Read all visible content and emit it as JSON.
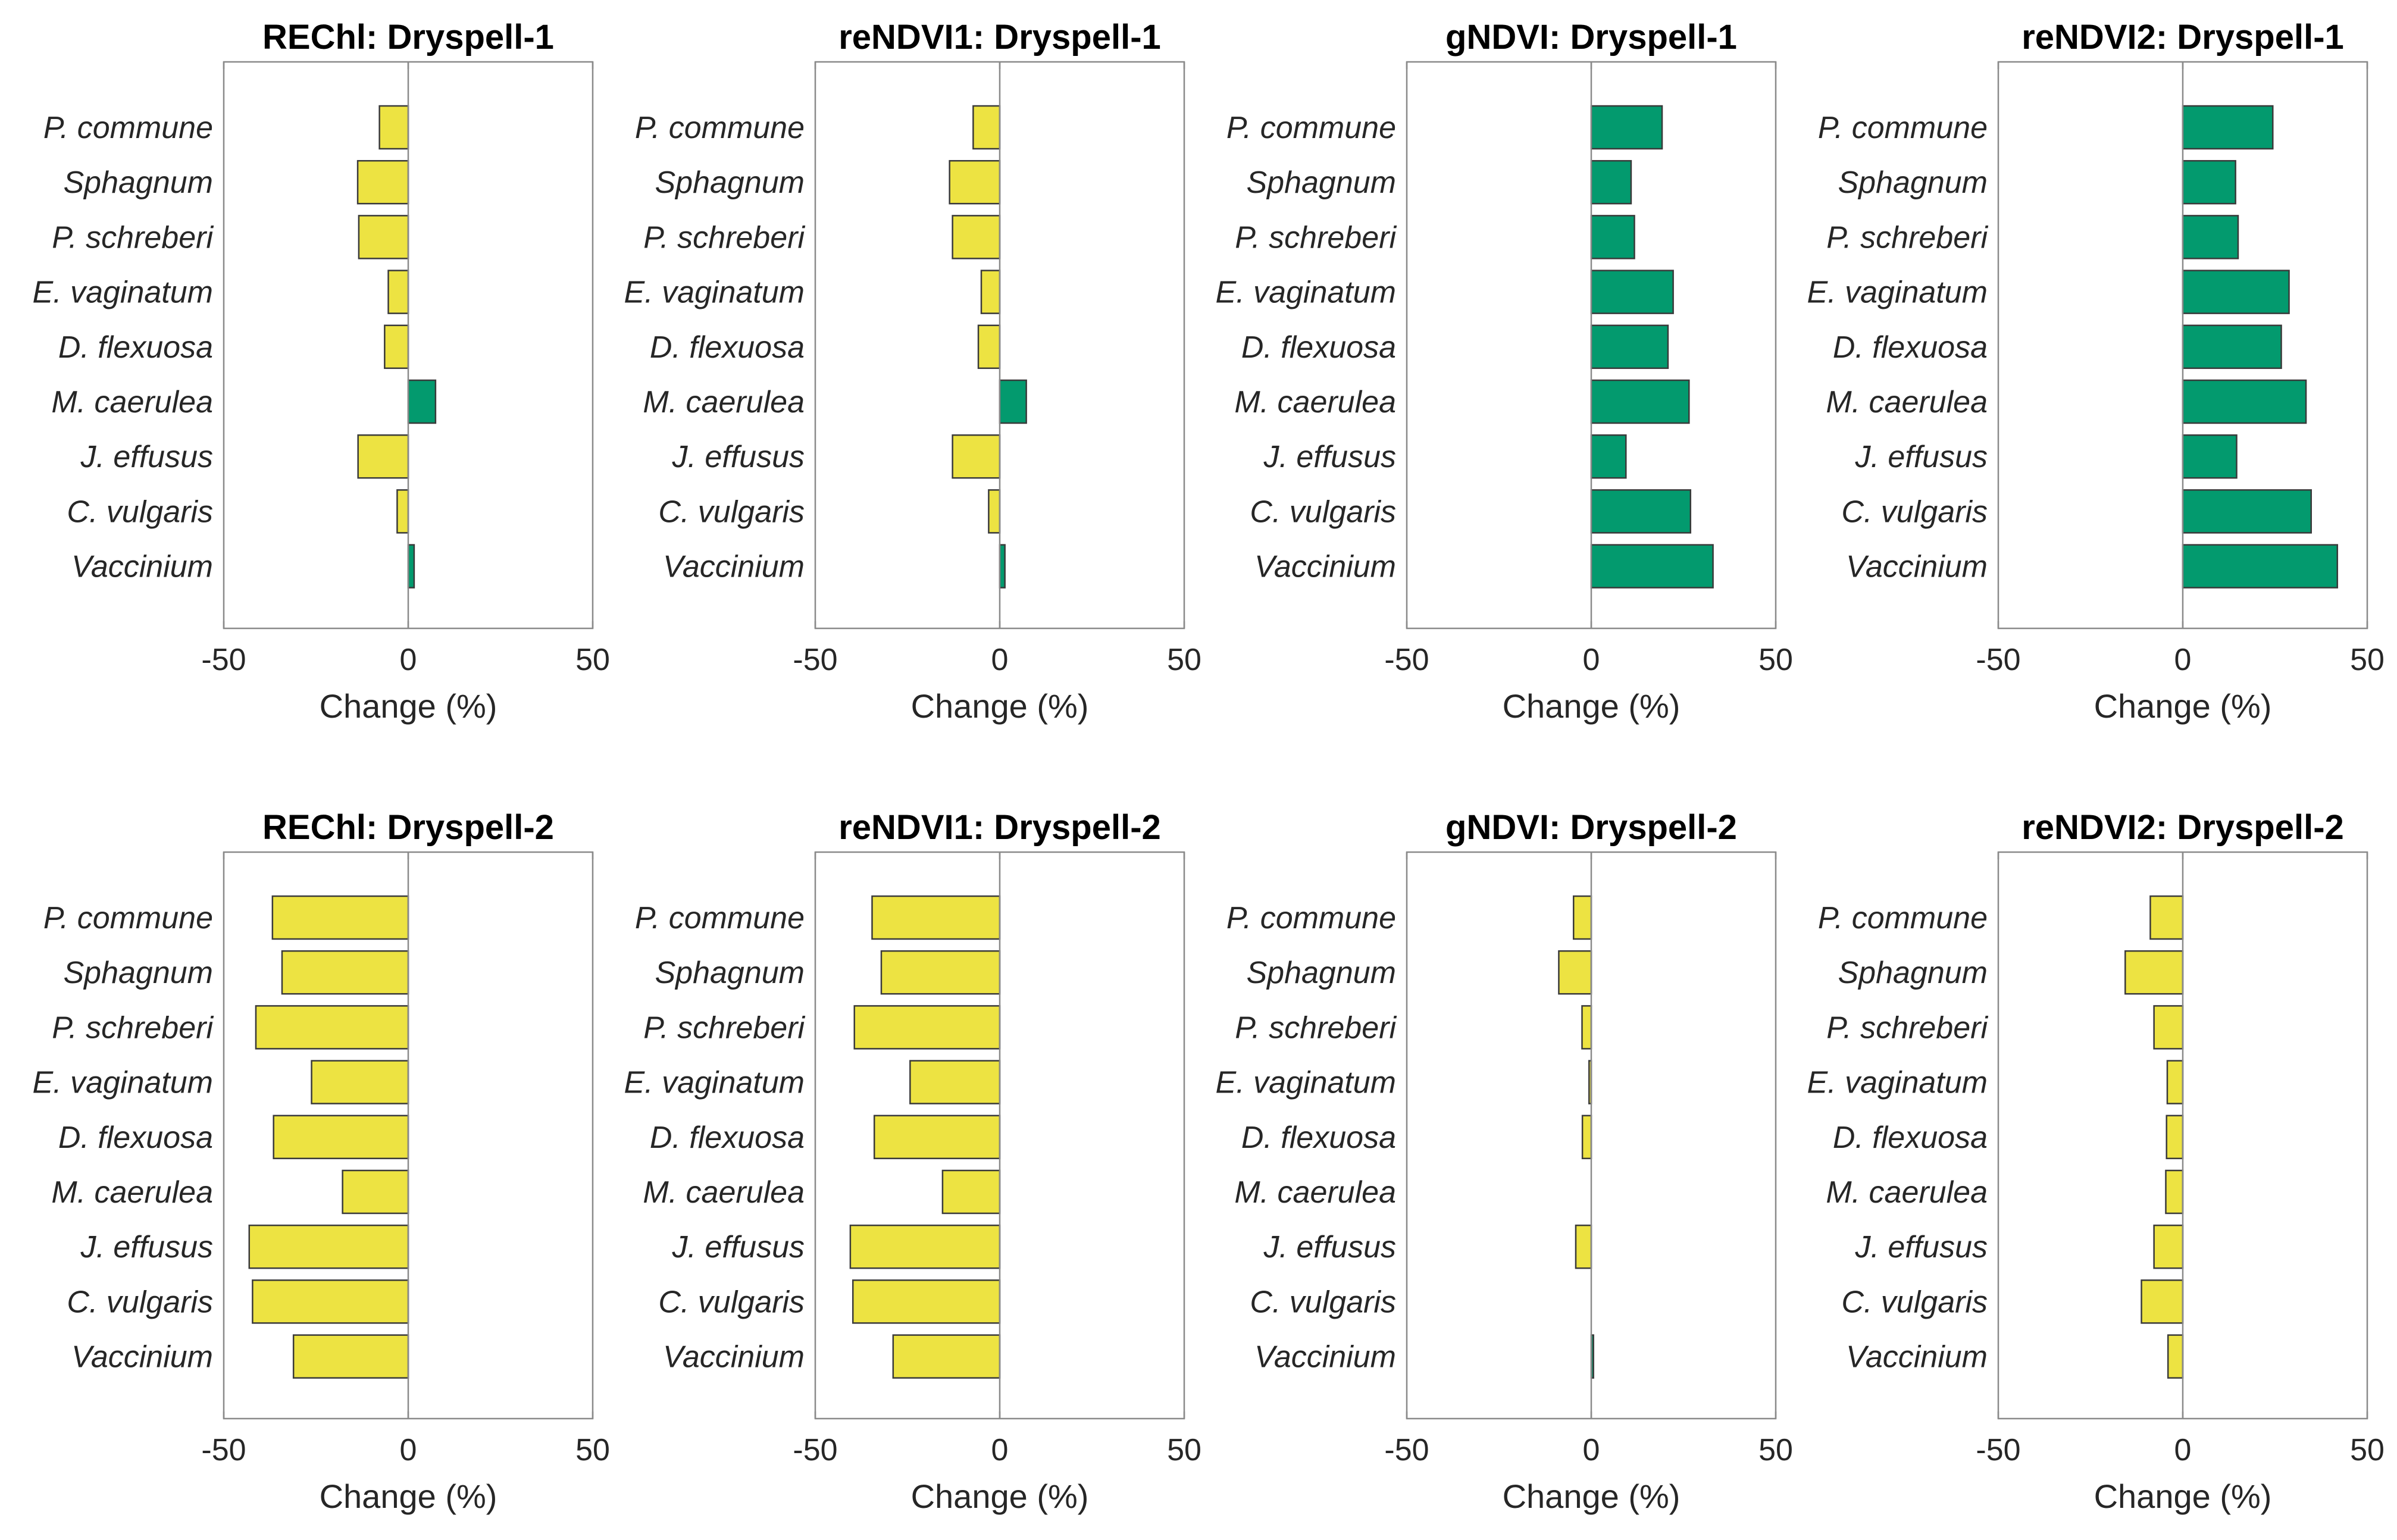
{
  "figure": {
    "xlabel": "Change (%)",
    "colors": {
      "positive": "#039a6e",
      "negative": "#ede342"
    }
  },
  "chart_data": [
    {
      "type": "bar",
      "orientation": "horizontal",
      "title": "REChl: Dryspell-1",
      "xlabel": "Change (%)",
      "xlim": [
        -50,
        50
      ],
      "xticks": [
        "-50",
        "0",
        "50"
      ],
      "categories": [
        "P. commune",
        "Sphagnum",
        "P. schreberi",
        "E. vaginatum",
        "D. flexuosa",
        "M. caerulea",
        "J. effusus",
        "C. vulgaris",
        "Vaccinium"
      ],
      "values": [
        -7.8,
        -13.7,
        -13.4,
        -5.4,
        -6.4,
        7.4,
        -13.6,
        -3.0,
        1.6
      ]
    },
    {
      "type": "bar",
      "orientation": "horizontal",
      "title": "reNDVI1: Dryspell-1",
      "xlabel": "Change (%)",
      "xlim": [
        -50,
        50
      ],
      "xticks": [
        "-50",
        "0",
        "50"
      ],
      "categories": [
        "P. commune",
        "Sphagnum",
        "P. schreberi",
        "E. vaginatum",
        "D. flexuosa",
        "M. caerulea",
        "J. effusus",
        "C. vulgaris",
        "Vaccinium"
      ],
      "values": [
        -7.2,
        -13.6,
        -12.8,
        -5.0,
        -5.8,
        7.2,
        -12.8,
        -3.0,
        1.4
      ]
    },
    {
      "type": "bar",
      "orientation": "horizontal",
      "title": "gNDVI: Dryspell-1",
      "xlabel": "Change (%)",
      "xlim": [
        -50,
        50
      ],
      "xticks": [
        "-50",
        "0",
        "50"
      ],
      "categories": [
        "P. commune",
        "Sphagnum",
        "P. schreberi",
        "E. vaginatum",
        "D. flexuosa",
        "M. caerulea",
        "J. effusus",
        "C. vulgaris",
        "Vaccinium"
      ],
      "values": [
        19.2,
        10.8,
        11.7,
        22.2,
        20.8,
        26.5,
        9.4,
        26.9,
        33.0
      ]
    },
    {
      "type": "bar",
      "orientation": "horizontal",
      "title": "reNDVI2: Dryspell-1",
      "xlabel": "Change (%)",
      "xlim": [
        -50,
        50
      ],
      "xticks": [
        "-50",
        "0",
        "50"
      ],
      "categories": [
        "P. commune",
        "Sphagnum",
        "P. schreberi",
        "E. vaginatum",
        "D. flexuosa",
        "M. caerulea",
        "J. effusus",
        "C. vulgaris",
        "Vaccinium"
      ],
      "values": [
        24.4,
        14.3,
        15.0,
        28.8,
        26.7,
        33.4,
        14.6,
        34.8,
        41.9
      ]
    },
    {
      "type": "bar",
      "orientation": "horizontal",
      "title": "REChl: Dryspell-2",
      "xlabel": "Change (%)",
      "xlim": [
        -50,
        50
      ],
      "xticks": [
        "-50",
        "0",
        "50"
      ],
      "categories": [
        "P. commune",
        "Sphagnum",
        "P. schreberi",
        "E. vaginatum",
        "D. flexuosa",
        "M. caerulea",
        "J. effusus",
        "C. vulgaris",
        "Vaccinium"
      ],
      "values": [
        -36.8,
        -34.2,
        -41.3,
        -26.2,
        -36.5,
        -17.8,
        -43.1,
        -42.2,
        -31.1
      ]
    },
    {
      "type": "bar",
      "orientation": "horizontal",
      "title": "reNDVI1: Dryspell-2",
      "xlabel": "Change (%)",
      "xlim": [
        -50,
        50
      ],
      "xticks": [
        "-50",
        "0",
        "50"
      ],
      "categories": [
        "P. commune",
        "Sphagnum",
        "P. schreberi",
        "E. vaginatum",
        "D. flexuosa",
        "M. caerulea",
        "J. effusus",
        "C. vulgaris",
        "Vaccinium"
      ],
      "values": [
        -34.6,
        -32.1,
        -39.4,
        -24.3,
        -34.0,
        -15.5,
        -40.5,
        -39.8,
        -28.9
      ]
    },
    {
      "type": "bar",
      "orientation": "horizontal",
      "title": "gNDVI: Dryspell-2",
      "xlabel": "Change (%)",
      "xlim": [
        -50,
        50
      ],
      "xticks": [
        "-50",
        "0",
        "50"
      ],
      "categories": [
        "P. commune",
        "Sphagnum",
        "P. schreberi",
        "E. vaginatum",
        "D. flexuosa",
        "M. caerulea",
        "J. effusus",
        "C. vulgaris",
        "Vaccinium"
      ],
      "values": [
        -4.8,
        -8.8,
        -2.5,
        -0.6,
        -2.4,
        0.0,
        -4.2,
        0.0,
        0.6
      ]
    },
    {
      "type": "bar",
      "orientation": "horizontal",
      "title": "reNDVI2: Dryspell-2",
      "xlabel": "Change (%)",
      "xlim": [
        -50,
        50
      ],
      "xticks": [
        "-50",
        "0",
        "50"
      ],
      "categories": [
        "P. commune",
        "Sphagnum",
        "P. schreberi",
        "E. vaginatum",
        "D. flexuosa",
        "M. caerulea",
        "J. effusus",
        "C. vulgaris",
        "Vaccinium"
      ],
      "values": [
        -8.8,
        -15.6,
        -7.8,
        -4.2,
        -4.4,
        -4.6,
        -7.8,
        -11.2,
        -4.0
      ]
    }
  ]
}
